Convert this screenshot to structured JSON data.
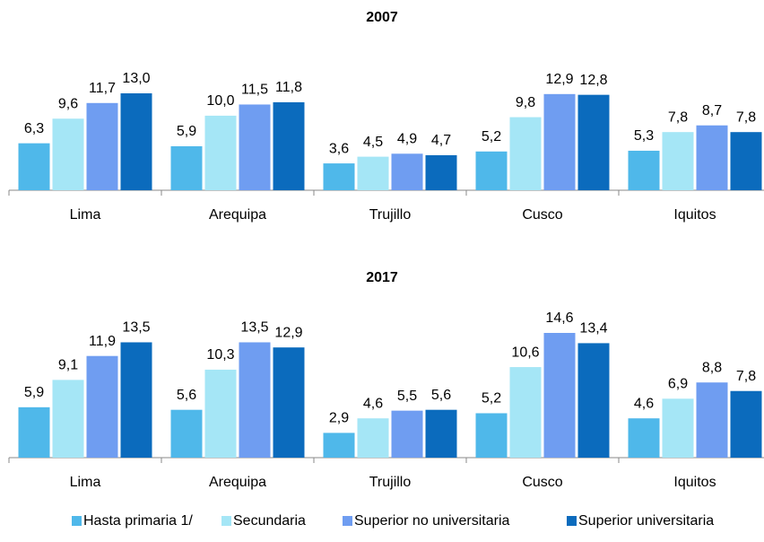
{
  "legend": [
    {
      "name": "Hasta primaria 1/",
      "color": "#4fb8ea"
    },
    {
      "name": "Secundaria",
      "color": "#a5e6f6"
    },
    {
      "name": "Superior no universitaria",
      "color": "#6f9df1"
    },
    {
      "name": "Superior universitaria",
      "color": "#0b6bbd"
    }
  ],
  "chart_data": [
    {
      "type": "bar",
      "title": "2007",
      "categories": [
        "Lima",
        "Arequipa",
        "Trujillo",
        "Cusco",
        "Iquitos"
      ],
      "series": [
        {
          "values": [
            6.3,
            5.9,
            3.6,
            5.2,
            5.3
          ],
          "value_labels": [
            "6,3",
            "5,9",
            "3,6",
            "5,2",
            "5,3"
          ]
        },
        {
          "values": [
            9.6,
            10.0,
            4.5,
            9.8,
            7.8
          ],
          "value_labels": [
            "9,6",
            "10,0",
            "4,5",
            "9,8",
            "7,8"
          ]
        },
        {
          "values": [
            11.7,
            11.5,
            4.9,
            12.9,
            8.7
          ],
          "value_labels": [
            "11,7",
            "11,5",
            "4,9",
            "12,9",
            "8,7"
          ]
        },
        {
          "values": [
            13.0,
            11.8,
            4.7,
            12.8,
            7.8
          ],
          "value_labels": [
            "13,0",
            "11,8",
            "4,7",
            "12,8",
            "7,8"
          ]
        }
      ]
    },
    {
      "type": "bar",
      "title": "2017",
      "categories": [
        "Lima",
        "Arequipa",
        "Trujillo",
        "Cusco",
        "Iquitos"
      ],
      "series": [
        {
          "values": [
            5.9,
            5.6,
            2.9,
            5.2,
            4.6
          ],
          "value_labels": [
            "5,9",
            "5,6",
            "2,9",
            "5,2",
            "4,6"
          ]
        },
        {
          "values": [
            9.1,
            10.3,
            4.6,
            10.6,
            6.9
          ],
          "value_labels": [
            "9,1",
            "10,3",
            "4,6",
            "10,6",
            "6,9"
          ]
        },
        {
          "values": [
            11.9,
            13.5,
            5.5,
            14.6,
            8.8
          ],
          "value_labels": [
            "11,9",
            "13,5",
            "5,5",
            "14,6",
            "8,8"
          ]
        },
        {
          "values": [
            13.5,
            12.9,
            5.6,
            13.4,
            7.8
          ],
          "value_labels": [
            "13,5",
            "12,9",
            "5,6",
            "13,4",
            "7,8"
          ]
        }
      ]
    }
  ]
}
